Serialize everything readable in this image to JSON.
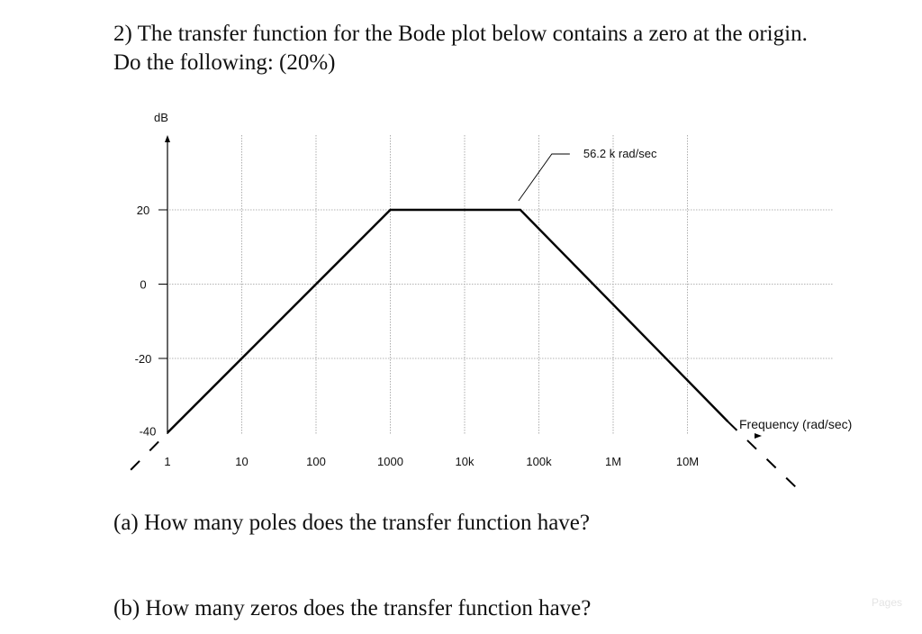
{
  "question": {
    "line1": "2) The transfer function for the Bode plot below contains a zero at the origin.",
    "line2": "Do the following: (20%)",
    "part_a": "(a)  How many poles does the transfer function have?",
    "part_b": "(b) How many zeros does the transfer function have?"
  },
  "watermark": "Pages",
  "chart_data": {
    "type": "line",
    "title": "",
    "xlabel": "Frequency (rad/sec)",
    "ylabel": "dB",
    "x_scale": "log",
    "xlim": [
      1,
      100000000
    ],
    "ylim": [
      -40,
      20
    ],
    "x_ticks": [
      {
        "value": 1,
        "label": "1"
      },
      {
        "value": 10,
        "label": "10"
      },
      {
        "value": 100,
        "label": "100"
      },
      {
        "value": 1000,
        "label": "1000"
      },
      {
        "value": 10000,
        "label": "10k"
      },
      {
        "value": 100000,
        "label": "100k"
      },
      {
        "value": 1000000,
        "label": "1M"
      },
      {
        "value": 10000000,
        "label": "10M"
      }
    ],
    "y_ticks": [
      {
        "value": 20,
        "label": "20"
      },
      {
        "value": 0,
        "label": "0"
      },
      {
        "value": -20,
        "label": "-20"
      },
      {
        "value": -40,
        "label": "-40"
      }
    ],
    "grid": true,
    "series": [
      {
        "x": [
          1,
          1000,
          56200,
          35000000
        ],
        "y": [
          -40,
          20,
          20,
          -37
        ],
        "color": "#000000"
      }
    ],
    "dashed_extensions": [
      {
        "x": [
          0.32,
          1
        ],
        "y": [
          -50,
          -40
        ]
      },
      {
        "x": [
          35000000,
          300000000
        ],
        "y": [
          -37,
          -55
        ]
      }
    ],
    "annotations": [
      {
        "text": "56.2 k rad/sec",
        "x": 56200,
        "y": 20
      }
    ]
  }
}
